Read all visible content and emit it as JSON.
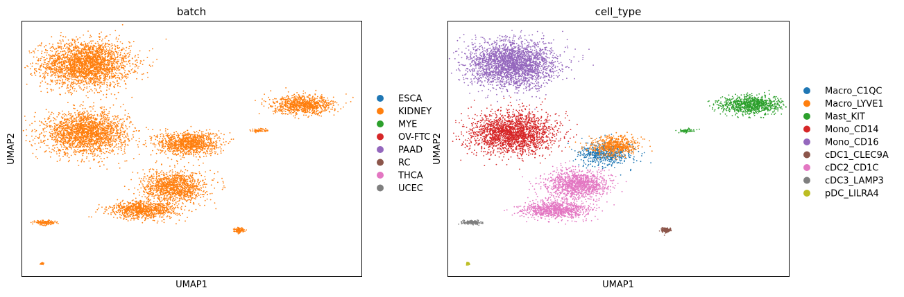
{
  "figure": {
    "panels": [
      {
        "title": "batch",
        "xlabel": "UMAP1",
        "ylabel": "UMAP2",
        "legend_placement": "right"
      },
      {
        "title": "cell_type",
        "xlabel": "UMAP1",
        "ylabel": "UMAP2",
        "legend_placement": "right"
      }
    ]
  },
  "chart_data": [
    {
      "type": "scatter",
      "title": "batch",
      "xlabel": "UMAP1",
      "ylabel": "UMAP2",
      "ticks": "none",
      "grid": false,
      "legend_placement": "right",
      "xlim": [
        0,
        10
      ],
      "ylim": [
        0,
        10
      ],
      "legend": [
        {
          "name": "ESCA",
          "color": "#1f77b4"
        },
        {
          "name": "KIDNEY",
          "color": "#ff7f0e"
        },
        {
          "name": "MYE",
          "color": "#2ca02c"
        },
        {
          "name": "OV-FTC",
          "color": "#d62728"
        },
        {
          "name": "PAAD",
          "color": "#9467bd"
        },
        {
          "name": "RC",
          "color": "#8c564b"
        },
        {
          "name": "THCA",
          "color": "#e377c2"
        },
        {
          "name": "UCEC",
          "color": "#7f7f7f"
        }
      ],
      "clusters": [
        {
          "label": "KIDNEY",
          "points": 2600,
          "center": [
            1.9,
            8.3
          ],
          "spread": [
            1.3,
            0.9
          ]
        },
        {
          "label": "KIDNEY",
          "points": 2200,
          "center": [
            1.9,
            5.6
          ],
          "spread": [
            1.2,
            0.8
          ]
        },
        {
          "label": "KIDNEY",
          "points": 1100,
          "center": [
            4.9,
            5.2
          ],
          "spread": [
            0.9,
            0.45
          ]
        },
        {
          "label": "KIDNEY",
          "points": 1200,
          "center": [
            4.5,
            3.5
          ],
          "spread": [
            0.9,
            0.6
          ]
        },
        {
          "label": "KIDNEY",
          "points": 900,
          "center": [
            3.6,
            2.6
          ],
          "spread": [
            1.0,
            0.35
          ]
        },
        {
          "label": "KIDNEY",
          "points": 900,
          "center": [
            8.3,
            6.7
          ],
          "spread": [
            0.9,
            0.35
          ]
        },
        {
          "label": "KIDNEY",
          "points": 60,
          "center": [
            7.0,
            5.7
          ],
          "spread": [
            0.25,
            0.08
          ]
        },
        {
          "label": "KIDNEY",
          "points": 120,
          "center": [
            6.4,
            1.8
          ],
          "spread": [
            0.15,
            0.1
          ]
        },
        {
          "label": "KIDNEY",
          "points": 150,
          "center": [
            0.7,
            2.1
          ],
          "spread": [
            0.3,
            0.08
          ]
        },
        {
          "label": "KIDNEY",
          "points": 30,
          "center": [
            0.6,
            0.5
          ],
          "spread": [
            0.05,
            0.05
          ]
        }
      ]
    },
    {
      "type": "scatter",
      "title": "cell_type",
      "xlabel": "UMAP1",
      "ylabel": "UMAP2",
      "ticks": "none",
      "grid": false,
      "legend_placement": "right",
      "xlim": [
        0,
        10
      ],
      "ylim": [
        0,
        10
      ],
      "legend": [
        {
          "name": "Macro_C1QC",
          "color": "#1f77b4"
        },
        {
          "name": "Macro_LYVE1",
          "color": "#ff7f0e"
        },
        {
          "name": "Mast_KIT",
          "color": "#2ca02c"
        },
        {
          "name": "Mono_CD14",
          "color": "#d62728"
        },
        {
          "name": "Mono_CD16",
          "color": "#9467bd"
        },
        {
          "name": "cDC1_CLEC9A",
          "color": "#8c564b"
        },
        {
          "name": "cDC2_CD1C",
          "color": "#e377c2"
        },
        {
          "name": "cDC3_LAMP3",
          "color": "#7f7f7f"
        },
        {
          "name": "pDC_LILRA4",
          "color": "#bcbd22"
        }
      ],
      "clusters": [
        {
          "label": "Mono_CD16",
          "points": 2600,
          "center": [
            1.9,
            8.3
          ],
          "spread": [
            1.3,
            0.9
          ]
        },
        {
          "label": "Mono_CD14",
          "points": 2200,
          "center": [
            1.9,
            5.6
          ],
          "spread": [
            1.2,
            0.8
          ]
        },
        {
          "label": "Macro_C1QC",
          "points": 550,
          "center": [
            4.6,
            4.8
          ],
          "spread": [
            0.8,
            0.45
          ]
        },
        {
          "label": "Macro_LYVE1",
          "points": 550,
          "center": [
            4.9,
            5.1
          ],
          "spread": [
            0.7,
            0.4
          ]
        },
        {
          "label": "cDC2_CD1C",
          "points": 1200,
          "center": [
            3.8,
            3.6
          ],
          "spread": [
            0.9,
            0.55
          ]
        },
        {
          "label": "cDC2_CD1C",
          "points": 900,
          "center": [
            3.2,
            2.6
          ],
          "spread": [
            1.0,
            0.35
          ]
        },
        {
          "label": "Mast_KIT",
          "points": 900,
          "center": [
            8.9,
            6.7
          ],
          "spread": [
            0.9,
            0.35
          ]
        },
        {
          "label": "Mast_KIT",
          "points": 60,
          "center": [
            7.0,
            5.7
          ],
          "spread": [
            0.25,
            0.08
          ]
        },
        {
          "label": "cDC1_CLEC9A",
          "points": 120,
          "center": [
            6.4,
            1.8
          ],
          "spread": [
            0.15,
            0.1
          ]
        },
        {
          "label": "cDC3_LAMP3",
          "points": 150,
          "center": [
            0.7,
            2.1
          ],
          "spread": [
            0.3,
            0.08
          ]
        },
        {
          "label": "pDC_LILRA4",
          "points": 30,
          "center": [
            0.6,
            0.5
          ],
          "spread": [
            0.05,
            0.05
          ]
        }
      ]
    }
  ]
}
